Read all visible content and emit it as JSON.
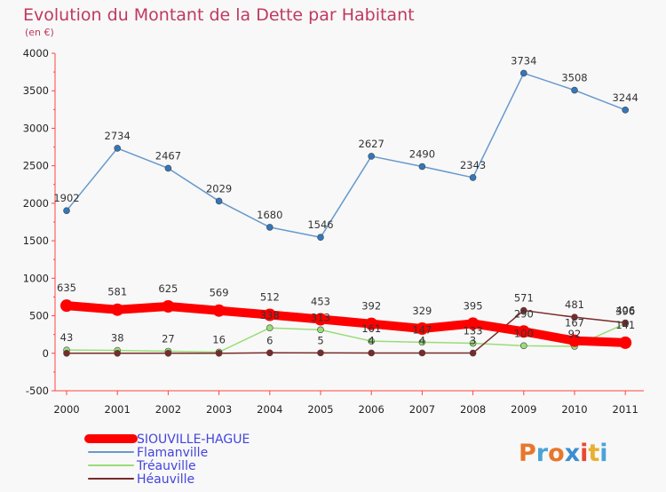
{
  "chart_data": {
    "type": "line",
    "title": "Evolution du Montant de la Dette par Habitant",
    "subtitle": "(en €)",
    "x": [
      "2000",
      "2001",
      "2002",
      "2003",
      "2004",
      "2005",
      "2006",
      "2007",
      "2008",
      "2009",
      "2010",
      "2011"
    ],
    "ylim": [
      -500,
      4000
    ],
    "yticks": [
      -500,
      0,
      500,
      1000,
      1500,
      2000,
      2500,
      3000,
      3500,
      4000
    ],
    "grid": false,
    "legend_position": "bottom-left",
    "series": [
      {
        "name": "SIOUVILLE-HAGUE",
        "color": "#ff0000",
        "values": [
          635,
          581,
          625,
          569,
          512,
          453,
          392,
          329,
          395,
          290,
          167,
          141
        ],
        "labels": [
          "635",
          "581",
          "625",
          "569",
          "512",
          "453",
          "392",
          "329",
          "395",
          "290",
          "167",
          "141"
        ]
      },
      {
        "name": "Flamanville",
        "color": "#6699cc",
        "values": [
          1902,
          2734,
          2467,
          2029,
          1680,
          1546,
          2627,
          2490,
          2343,
          3734,
          3508,
          3244
        ],
        "labels": [
          "1902",
          "2734",
          "2467",
          "2029",
          "1680",
          "1546",
          "2627",
          "2490",
          "2343",
          "3734",
          "3508",
          "3244"
        ]
      },
      {
        "name": "Tréauville",
        "color": "#99dd77",
        "values": [
          43,
          38,
          27,
          16,
          338,
          313,
          161,
          147,
          133,
          100,
          92,
          396
        ],
        "labels": [
          "43",
          "38",
          "27",
          "16",
          "338",
          "313",
          "161",
          "147",
          "133",
          "100",
          "92",
          "396"
        ]
      },
      {
        "name": "Héauville",
        "color": "#7a2a2a",
        "values": [
          0,
          0,
          0,
          0,
          6,
          5,
          4,
          4,
          3,
          571,
          481,
          406
        ],
        "labels": [
          "0",
          "0",
          "0",
          "0",
          "6",
          "5",
          "4",
          "4",
          "3",
          "571",
          "481",
          "406"
        ]
      }
    ]
  },
  "logo": {
    "text": "Proxiti"
  }
}
